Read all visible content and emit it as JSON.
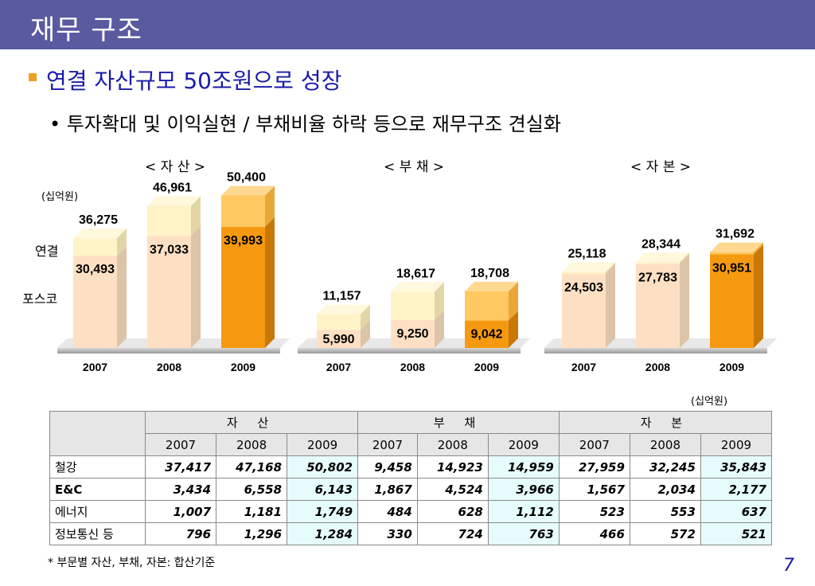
{
  "header": {
    "title": "재무 구조"
  },
  "headline": "연결 자산규모 50조원으로 성장",
  "subline": "• 투자확대 및 이익실현 / 부채비율 하락 등으로 재무구조 견실화",
  "unit_label": "(십억원)",
  "row_labels": {
    "consolidated": "연결",
    "posco": "포스코"
  },
  "colors": {
    "header": "#5a5aa0",
    "bar_light_top": "#fff3c8",
    "bar_light_bottom": "#fde0c4",
    "bar_dark_top": "#ffc860",
    "bar_dark_bottom": "#f59a10",
    "platform": "#b8b8b8"
  },
  "chart_data": [
    {
      "type": "bar",
      "title": "< 자    산 >",
      "categories": [
        "2007",
        "2008",
        "2009"
      ],
      "series": [
        {
          "name": "포스코",
          "values": [
            30493,
            37033,
            39993
          ]
        },
        {
          "name": "연결",
          "values": [
            36275,
            46961,
            50400
          ]
        }
      ],
      "highlight": "2009",
      "labels": {
        "total": [
          "36,275",
          "46,961",
          "50,400"
        ],
        "posco": [
          "30,493",
          "37,033",
          "39,993"
        ]
      },
      "ylim": [
        0,
        50400
      ]
    },
    {
      "type": "bar",
      "title": "< 부    채 >",
      "categories": [
        "2007",
        "2008",
        "2009"
      ],
      "series": [
        {
          "name": "포스코",
          "values": [
            5990,
            9250,
            9042
          ]
        },
        {
          "name": "연결",
          "values": [
            11157,
            18617,
            18708
          ]
        }
      ],
      "highlight": "2009",
      "labels": {
        "total": [
          "11,157",
          "18,617",
          "18,708"
        ],
        "posco": [
          "5,990",
          "9,250",
          "9,042"
        ]
      },
      "ylim": [
        0,
        50400
      ]
    },
    {
      "type": "bar",
      "title": "< 자    본 >",
      "categories": [
        "2007",
        "2008",
        "2009"
      ],
      "series": [
        {
          "name": "포스코",
          "values": [
            24503,
            27783,
            30951
          ]
        },
        {
          "name": "연결",
          "values": [
            25118,
            28344,
            31692
          ]
        }
      ],
      "highlight": "2009",
      "labels": {
        "total": [
          "25,118",
          "28,344",
          "31,692"
        ],
        "posco": [
          "24,503",
          "27,783",
          "30,951"
        ]
      },
      "ylim": [
        0,
        50400
      ]
    }
  ],
  "table": {
    "unit": "(십억원)",
    "groups": [
      "자 산",
      "부 채",
      "자 본"
    ],
    "years": [
      "2007",
      "2008",
      "2009"
    ],
    "rows": [
      {
        "label": "철강",
        "values": [
          "37,417",
          "47,168",
          "50,802",
          "9,458",
          "14,923",
          "14,959",
          "27,959",
          "32,245",
          "35,843"
        ]
      },
      {
        "label": "E&C",
        "values": [
          "3,434",
          "6,558",
          "6,143",
          "1,867",
          "4,524",
          "3,966",
          "1,567",
          "2,034",
          "2,177"
        ]
      },
      {
        "label": "에너지",
        "values": [
          "1,007",
          "1,181",
          "1,749",
          "484",
          "628",
          "1,112",
          "523",
          "553",
          "637"
        ]
      },
      {
        "label": "정보통신 등",
        "values": [
          "796",
          "1,296",
          "1,284",
          "330",
          "724",
          "763",
          "466",
          "572",
          "521"
        ]
      }
    ]
  },
  "footnote": "* 부문별 자산, 부채, 자본: 합산기준",
  "page_number": "7"
}
